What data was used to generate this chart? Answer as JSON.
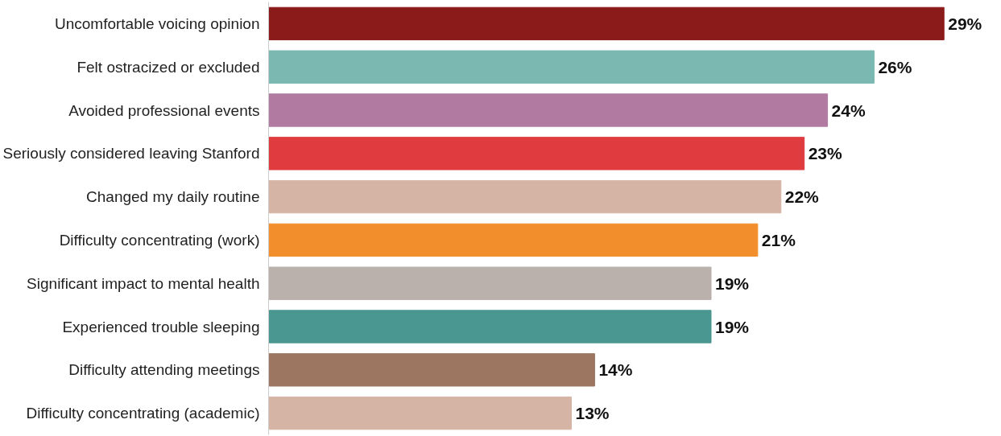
{
  "chart_data": {
    "type": "bar",
    "orientation": "horizontal",
    "grid": false,
    "categories": [
      "Uncomfortable voicing opinion",
      "Felt ostracized or excluded",
      "Avoided professional events",
      "Seriously considered leaving Stanford",
      "Changed my daily routine",
      "Difficulty concentrating (work)",
      "Significant impact to mental health",
      "Experienced trouble sleeping",
      "Difficulty attending meetings",
      "Difficulty concentrating (academic)"
    ],
    "values": [
      29,
      26,
      24,
      23,
      22,
      21,
      19,
      19,
      14,
      13
    ],
    "value_labels": [
      "29%",
      "26%",
      "24%",
      "23%",
      "22%",
      "21%",
      "19%",
      "19%",
      "14%",
      "13%"
    ],
    "colors": [
      "#8b1a1a",
      "#7bb8b1",
      "#b07aa1",
      "#e03c3f",
      "#d6b4a5",
      "#f28e2b",
      "#bab0ac",
      "#4a9690",
      "#9c7660",
      "#d6b4a5"
    ]
  }
}
